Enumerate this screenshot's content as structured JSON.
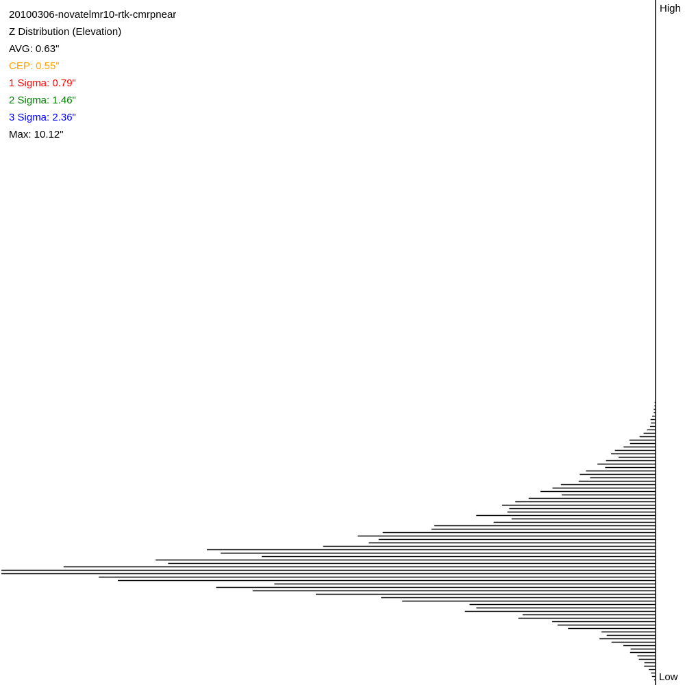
{
  "stats": {
    "title": "20100306-novatelmr10-rtk-cmrpnear",
    "subtitle": "Z Distribution (Elevation)",
    "avg": "AVG: 0.63\"",
    "cep": "CEP: 0.55\"",
    "sigma1": "1 Sigma: 0.79\"",
    "sigma2": "2 Sigma: 1.46\"",
    "sigma3": "3 Sigma: 2.36\"",
    "max": "Max: 10.12\""
  },
  "colors": {
    "text": "#000000",
    "cep": "#ffa500",
    "sigma1": "#ff0000",
    "sigma2": "#008000",
    "sigma3": "#0000ff",
    "bars": "#000000"
  },
  "chart_data": {
    "type": "bar",
    "orientation": "horizontal",
    "title": "Z Distribution (Elevation)",
    "ylabel_top": "High",
    "ylabel_bottom": "Low",
    "grid": false,
    "bin_count": 200,
    "value_scale": "relative frequency (max = 1.0)",
    "profile": {
      "bins": [
        0,
        115,
        120,
        125,
        130,
        135,
        140,
        145,
        150,
        154,
        157,
        160,
        163,
        166,
        170,
        173,
        176,
        180,
        184,
        188,
        192,
        195,
        199
      ],
      "values": [
        0,
        0,
        0.003,
        0.012,
        0.05,
        0.08,
        0.12,
        0.18,
        0.24,
        0.34,
        0.42,
        0.6,
        0.76,
        1.0,
        0.7,
        0.47,
        0.32,
        0.18,
        0.1,
        0.05,
        0.025,
        0.01,
        0.0
      ]
    }
  }
}
